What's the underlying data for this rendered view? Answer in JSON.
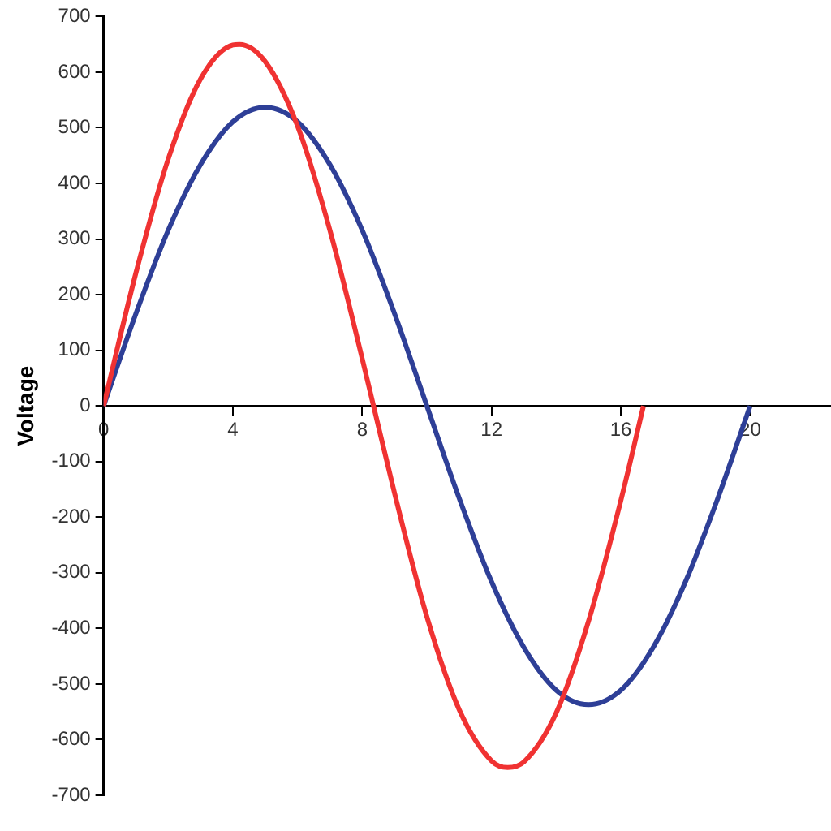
{
  "chart_data": {
    "type": "line",
    "ylabel": "Voltage",
    "series": [
      {
        "color": "#f03232",
        "x": [
          0,
          1,
          2,
          3,
          4,
          4.2,
          5,
          6,
          7,
          8,
          8.35,
          9,
          10,
          11,
          12,
          12.5,
          13,
          14,
          15,
          16,
          16.7
        ],
        "values": [
          0,
          239,
          444,
          588,
          649,
          650,
          619,
          503,
          316,
          85,
          0,
          -157,
          -379,
          -546,
          -638,
          -650,
          -640,
          -552,
          -387,
          -170,
          0
        ]
      },
      {
        "color": "#2e3f97",
        "x": [
          0,
          1,
          2,
          3,
          4,
          5,
          6,
          7,
          8,
          9,
          10,
          11,
          12,
          13,
          14,
          15,
          16,
          17,
          18,
          19,
          20
        ],
        "values": [
          0,
          166,
          316,
          434,
          511,
          537,
          511,
          434,
          316,
          166,
          0,
          -166,
          -316,
          -434,
          -511,
          -537,
          -511,
          -434,
          -316,
          -166,
          0
        ]
      }
    ],
    "xlim": [
      0,
      22.5
    ],
    "xticks": [
      0,
      4,
      8,
      12,
      16,
      20
    ],
    "ylim": [
      -700,
      700
    ],
    "yticks": [
      -700,
      -600,
      -500,
      -400,
      -300,
      -200,
      -100,
      0,
      100,
      200,
      300,
      400,
      500,
      600,
      700
    ],
    "grid": false,
    "legend": false,
    "marker": "none",
    "line_style": "solid"
  }
}
